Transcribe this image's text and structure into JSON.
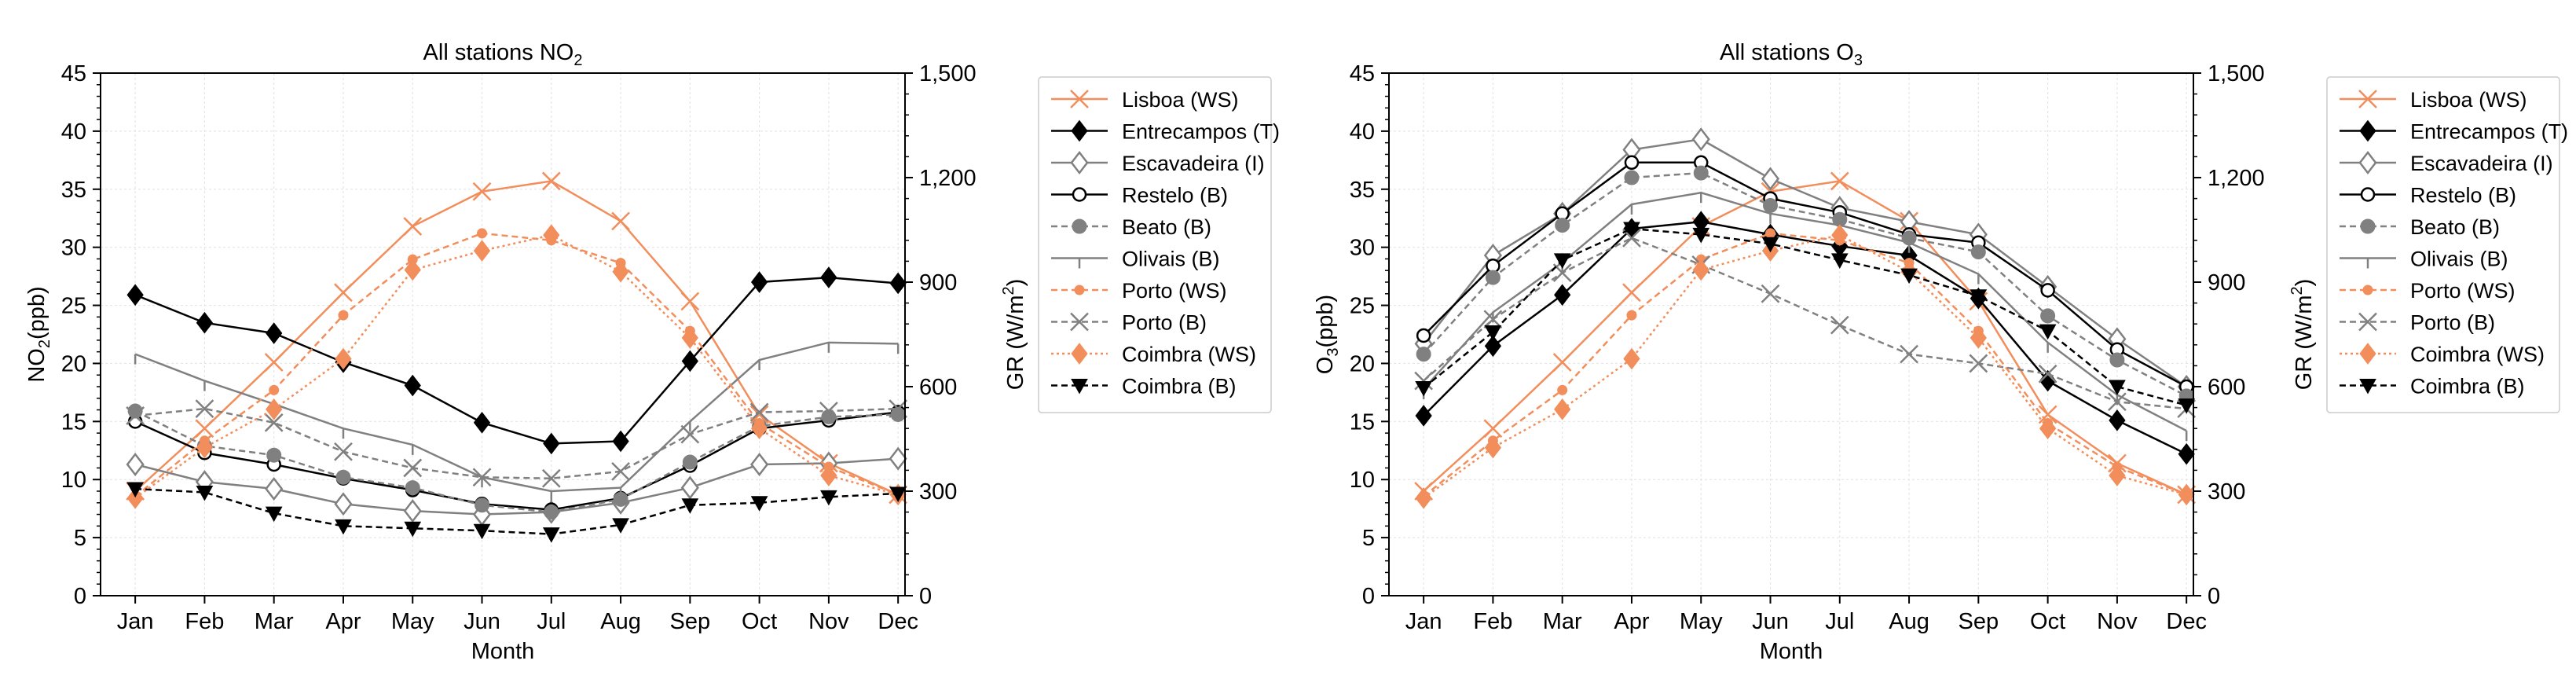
{
  "chart_data": [
    {
      "type": "line",
      "title_main": "All stations NO",
      "title_sub": "2",
      "xlabel": "Month",
      "ylabel_main": "NO",
      "ylabel_sub": "2",
      "ylabel_tail": "(ppb)",
      "y2label_main": "GR (W/m",
      "y2label_sup": "2",
      "y2label_tail": ")",
      "categories": [
        "Jan",
        "Feb",
        "Mar",
        "Apr",
        "May",
        "Jun",
        "Jul",
        "Aug",
        "Sep",
        "Oct",
        "Nov",
        "Dec"
      ],
      "ylim": [
        0,
        45
      ],
      "yticks": [
        0,
        5,
        10,
        15,
        20,
        25,
        30,
        35,
        40,
        45
      ],
      "y2lim": [
        0,
        1500
      ],
      "y2ticks": [
        0,
        300,
        600,
        900,
        1200,
        1500
      ],
      "y2tick_labels": [
        "0",
        "300",
        "600",
        "900",
        "1,200",
        "1,500"
      ],
      "legend_position": "outside-right",
      "series": [
        {
          "name": "Lisboa (WS)",
          "color": "#f28e5c",
          "dash": "",
          "marker": "x",
          "axis": "right",
          "values": [
            300,
            480,
            670,
            870,
            1060,
            1160,
            1190,
            1075,
            845,
            520,
            380,
            290
          ]
        },
        {
          "name": "Entrecampos (T)",
          "color": "#000000",
          "dash": "",
          "marker": "diamond-filled",
          "axis": "left",
          "values": [
            25.9,
            23.5,
            22.6,
            20.1,
            18.1,
            14.9,
            13.1,
            13.3,
            20.2,
            27.0,
            27.4,
            26.9
          ]
        },
        {
          "name": "Escavadeira (I)",
          "color": "#808080",
          "dash": "",
          "marker": "diamond-open",
          "axis": "left",
          "values": [
            11.3,
            9.8,
            9.2,
            7.9,
            7.3,
            7.0,
            7.2,
            8.0,
            9.3,
            11.3,
            11.4,
            11.8
          ]
        },
        {
          "name": "Restelo (B)",
          "color": "#000000",
          "dash": "",
          "marker": "circle-open",
          "axis": "left",
          "values": [
            15.0,
            12.3,
            11.3,
            10.1,
            9.1,
            7.9,
            7.4,
            8.4,
            11.2,
            14.4,
            15.1,
            15.8
          ]
        },
        {
          "name": "Beato (B)",
          "color": "#808080",
          "dash": "8,5",
          "marker": "circle-filled",
          "axis": "left",
          "values": [
            15.9,
            12.9,
            12.1,
            10.2,
            9.3,
            7.8,
            7.2,
            8.3,
            11.5,
            14.6,
            15.4,
            15.6
          ]
        },
        {
          "name": "Olivais (B)",
          "color": "#808080",
          "dash": "",
          "marker": "tick",
          "axis": "left",
          "values": [
            20.8,
            18.5,
            16.5,
            14.4,
            13.0,
            10.2,
            9.0,
            9.3,
            15.0,
            20.3,
            21.8,
            21.7
          ]
        },
        {
          "name": "Porto (WS)",
          "color": "#f28e5c",
          "dash": "8,5",
          "marker": "circle-small",
          "axis": "right",
          "values": [
            285,
            445,
            590,
            805,
            965,
            1040,
            1020,
            955,
            760,
            495,
            370,
            290
          ]
        },
        {
          "name": "Porto (B)",
          "color": "#808080",
          "dash": "8,5",
          "marker": "x",
          "axis": "left",
          "values": [
            15.5,
            16.1,
            14.9,
            12.4,
            11.0,
            10.2,
            10.1,
            10.7,
            13.9,
            15.8,
            15.9,
            16.1
          ]
        },
        {
          "name": "Coimbra (WS)",
          "color": "#f28e5c",
          "dash": "3,4",
          "marker": "diamond-filled",
          "axis": "right",
          "values": [
            280,
            425,
            535,
            680,
            935,
            990,
            1035,
            930,
            740,
            480,
            345,
            290
          ]
        },
        {
          "name": "Coimbra (B)",
          "color": "#000000",
          "dash": "8,5",
          "marker": "triangle-down",
          "axis": "left",
          "values": [
            9.2,
            8.9,
            7.1,
            6.0,
            5.8,
            5.6,
            5.3,
            6.1,
            7.8,
            8.0,
            8.5,
            8.8
          ]
        }
      ]
    },
    {
      "type": "line",
      "title_main": "All stations O",
      "title_sub": "3",
      "xlabel": "Month",
      "ylabel_main": "O",
      "ylabel_sub": "3",
      "ylabel_tail": "(ppb)",
      "y2label_main": "GR (W/m",
      "y2label_sup": "2",
      "y2label_tail": ")",
      "categories": [
        "Jan",
        "Feb",
        "Mar",
        "Apr",
        "May",
        "Jun",
        "Jul",
        "Aug",
        "Sep",
        "Oct",
        "Nov",
        "Dec"
      ],
      "ylim": [
        0,
        45
      ],
      "yticks": [
        0,
        5,
        10,
        15,
        20,
        25,
        30,
        35,
        40,
        45
      ],
      "y2lim": [
        0,
        1500
      ],
      "y2ticks": [
        0,
        300,
        600,
        900,
        1200,
        1500
      ],
      "y2tick_labels": [
        "0",
        "300",
        "600",
        "900",
        "1,200",
        "1,500"
      ],
      "legend_position": "outside-right",
      "series": [
        {
          "name": "Lisboa (WS)",
          "color": "#f28e5c",
          "dash": "",
          "marker": "x",
          "axis": "right",
          "values": [
            300,
            480,
            670,
            870,
            1060,
            1160,
            1190,
            1075,
            845,
            520,
            380,
            290
          ]
        },
        {
          "name": "Entrecampos (T)",
          "color": "#000000",
          "dash": "",
          "marker": "diamond-filled",
          "axis": "left",
          "values": [
            15.5,
            21.5,
            25.9,
            31.6,
            32.2,
            31.1,
            30.1,
            29.3,
            25.6,
            18.5,
            15.1,
            12.2
          ]
        },
        {
          "name": "Escavadeira (I)",
          "color": "#808080",
          "dash": "",
          "marker": "diamond-open",
          "axis": "left",
          "values": [
            21.7,
            29.3,
            32.9,
            38.4,
            39.3,
            35.9,
            33.4,
            32.2,
            31.1,
            26.6,
            22.1,
            18.0
          ]
        },
        {
          "name": "Restelo (B)",
          "color": "#000000",
          "dash": "",
          "marker": "circle-open",
          "axis": "left",
          "values": [
            22.4,
            28.4,
            32.9,
            37.3,
            37.3,
            34.2,
            33.0,
            31.1,
            30.4,
            26.3,
            21.2,
            18.0
          ]
        },
        {
          "name": "Beato (B)",
          "color": "#808080",
          "dash": "8,5",
          "marker": "circle-filled",
          "axis": "left",
          "values": [
            20.8,
            27.4,
            31.9,
            36.0,
            36.4,
            33.6,
            32.4,
            30.8,
            29.6,
            24.1,
            20.3,
            17.2
          ]
        },
        {
          "name": "Olivais (B)",
          "color": "#808080",
          "dash": "",
          "marker": "tick",
          "axis": "left",
          "values": [
            17.8,
            24.4,
            28.7,
            33.7,
            34.7,
            32.9,
            31.9,
            30.4,
            27.7,
            21.8,
            17.3,
            14.2
          ]
        },
        {
          "name": "Porto (WS)",
          "color": "#f28e5c",
          "dash": "8,5",
          "marker": "circle-small",
          "axis": "right",
          "values": [
            285,
            445,
            590,
            805,
            965,
            1040,
            1020,
            955,
            760,
            495,
            370,
            290
          ]
        },
        {
          "name": "Porto (B)",
          "color": "#808080",
          "dash": "8,5",
          "marker": "x",
          "axis": "left",
          "values": [
            18.5,
            23.8,
            27.8,
            30.8,
            28.5,
            26.0,
            23.3,
            20.8,
            20.0,
            19.1,
            16.7,
            16.1
          ]
        },
        {
          "name": "Coimbra (WS)",
          "color": "#f28e5c",
          "dash": "3,4",
          "marker": "diamond-filled",
          "axis": "right",
          "values": [
            280,
            425,
            535,
            680,
            935,
            990,
            1035,
            930,
            740,
            480,
            345,
            290
          ]
        },
        {
          "name": "Coimbra (B)",
          "color": "#000000",
          "dash": "8,5",
          "marker": "triangle-down",
          "axis": "left",
          "values": [
            17.9,
            22.7,
            28.9,
            31.6,
            31.1,
            30.3,
            28.9,
            27.6,
            25.8,
            22.8,
            18.0,
            16.4
          ]
        }
      ]
    }
  ]
}
